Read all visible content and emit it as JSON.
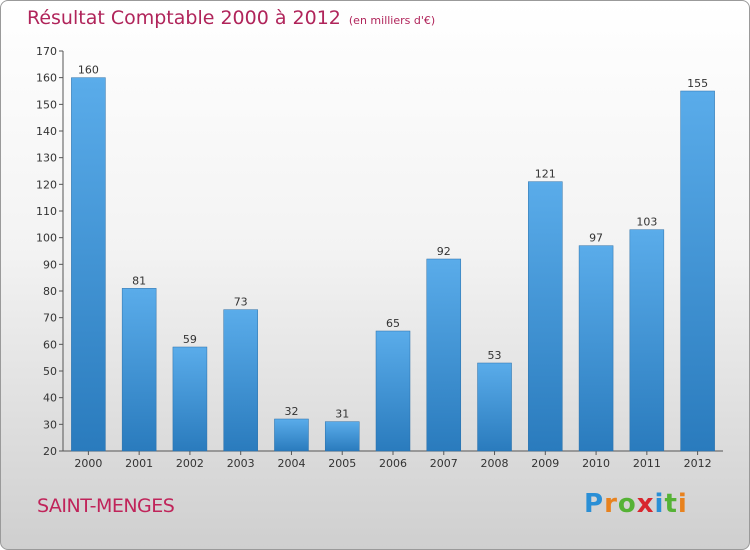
{
  "header": {
    "title": "Résultat Comptable 2000 à 2012",
    "subtitle": "(en milliers d'€)"
  },
  "footer": {
    "place": "SAINT-MENGES",
    "logo_letters": [
      "P",
      "r",
      "o",
      "x",
      "i",
      "t",
      "i"
    ],
    "logo_colors": [
      "#2a8fd6",
      "#e8821e",
      "#55b235",
      "#d8262e",
      "#2a8fd6",
      "#55b235",
      "#e8821e"
    ]
  },
  "chart_data": {
    "type": "bar",
    "title": "Résultat Comptable 2000 à 2012",
    "subtitle": "(en milliers d'€)",
    "categories": [
      "2000",
      "2001",
      "2002",
      "2003",
      "2004",
      "2005",
      "2006",
      "2007",
      "2008",
      "2009",
      "2010",
      "2011",
      "2012"
    ],
    "values": [
      160,
      81,
      59,
      73,
      32,
      31,
      65,
      92,
      53,
      121,
      97,
      103,
      155
    ],
    "ylim": [
      20,
      170
    ],
    "yticks": [
      20,
      30,
      40,
      50,
      60,
      70,
      80,
      90,
      100,
      110,
      120,
      130,
      140,
      150,
      160,
      170
    ],
    "grid": false,
    "bar_color": "#3d93d4"
  }
}
